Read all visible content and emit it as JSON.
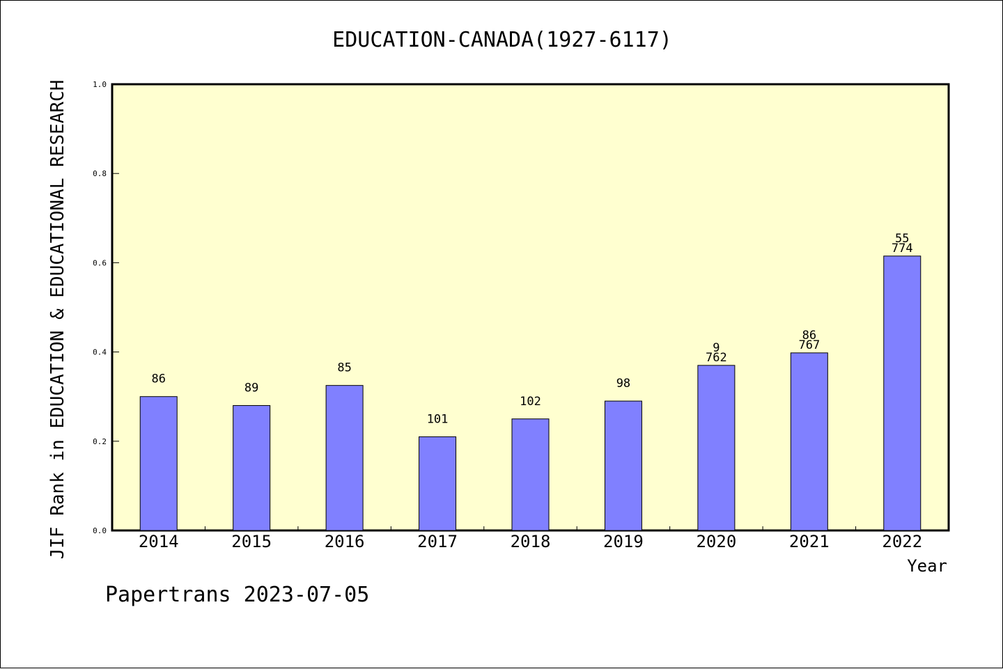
{
  "chart_data": {
    "type": "bar",
    "title": "EDUCATION-CANADA(1927-6117)",
    "xlabel": "Year",
    "ylabel": "JIF Rank in EDUCATION & EDUCATIONAL RESEARCH",
    "categories": [
      "2014",
      "2015",
      "2016",
      "2017",
      "2018",
      "2019",
      "2020",
      "2021",
      "2022"
    ],
    "values": [
      0.3,
      0.28,
      0.325,
      0.21,
      0.25,
      0.29,
      0.37,
      0.398,
      0.615
    ],
    "data_labels": [
      [
        "86"
      ],
      [
        "89"
      ],
      [
        "85"
      ],
      [
        "101"
      ],
      [
        "102"
      ],
      [
        "98"
      ],
      [
        "9",
        "762"
      ],
      [
        "86",
        "767"
      ],
      [
        "55",
        "774"
      ]
    ],
    "ylim": [
      0,
      1.0
    ],
    "yticks": [
      "0.0",
      "0.2",
      "0.4",
      "0.6",
      "0.8",
      "1.0"
    ],
    "grid": false,
    "colors": {
      "plot_background": "#ffffd0",
      "bar": "#8080ff",
      "bar_edge": "#000000"
    }
  },
  "footer": "Papertrans 2023-07-05"
}
